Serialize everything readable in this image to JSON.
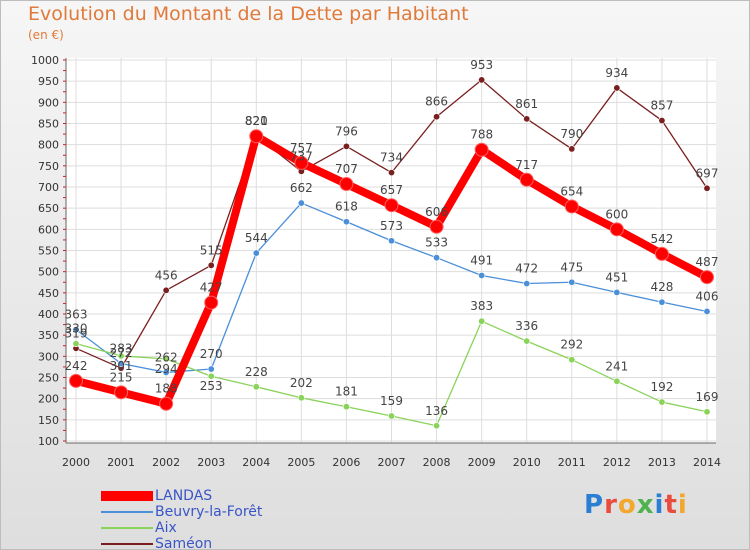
{
  "header": {
    "title": "Evolution du Montant de la Dette par Habitant",
    "subtitle": "(en €)"
  },
  "logo": {
    "text": "Proxiti"
  },
  "chart_data": {
    "type": "line",
    "x": [
      "2000",
      "2001",
      "2002",
      "2003",
      "2004",
      "2005",
      "2006",
      "2007",
      "2008",
      "2009",
      "2010",
      "2011",
      "2012",
      "2013",
      "2014"
    ],
    "ylim": [
      100,
      1000
    ],
    "yticks": [
      100,
      150,
      200,
      250,
      300,
      350,
      400,
      450,
      500,
      550,
      600,
      650,
      700,
      750,
      800,
      850,
      900,
      950,
      1000
    ],
    "grid": true,
    "legend_position": "bottom-left",
    "series": [
      {
        "name": "Saméon",
        "color": "#7a1f1f",
        "values": [
          319,
          272,
          456,
          515,
          821,
          737,
          796,
          734,
          866,
          953,
          861,
          790,
          934,
          857,
          697
        ],
        "labels": [
          "319",
          "272",
          "456",
          "515",
          "821",
          "737",
          "796",
          "734",
          "866",
          "953",
          "861",
          "790",
          "934",
          "857",
          "697"
        ]
      },
      {
        "name": "Beuvry-la-Forêt",
        "color": "#4a8fd8",
        "values": [
          363,
          283,
          262,
          270,
          544,
          662,
          618,
          573,
          533,
          491,
          472,
          475,
          451,
          428,
          406
        ],
        "labels": [
          "363",
          "283",
          "262",
          "270",
          "544",
          "662",
          "618",
          "573",
          "533",
          "491",
          "472",
          "475",
          "451",
          "428",
          "406"
        ]
      },
      {
        "name": "Aix",
        "color": "#8ad35a",
        "values": [
          330,
          301,
          294,
          253,
          228,
          202,
          181,
          159,
          136,
          383,
          336,
          292,
          241,
          192,
          169
        ],
        "labels": [
          "330",
          "301",
          "294",
          "253",
          "228",
          "202",
          "181",
          "159",
          "136",
          "383",
          "336",
          "292",
          "241",
          "192",
          "169"
        ]
      },
      {
        "name": "LANDAS",
        "color": "#ff0000",
        "values": [
          242,
          215,
          188,
          427,
          820,
          757,
          707,
          657,
          606,
          788,
          717,
          654,
          600,
          542,
          487
        ],
        "labels": [
          "242",
          "215",
          "188",
          "427",
          "820",
          "757",
          "707",
          "657",
          "606",
          "788",
          "717",
          "654",
          "600",
          "542",
          "487"
        ]
      }
    ],
    "legend": [
      {
        "name": "LANDAS",
        "color": "#ff0000",
        "thick": true
      },
      {
        "name": "Beuvry-la-Forêt",
        "color": "#4a8fd8",
        "thick": false
      },
      {
        "name": "Aix",
        "color": "#8ad35a",
        "thick": false
      },
      {
        "name": "Saméon",
        "color": "#7a1f1f",
        "thick": false
      }
    ]
  }
}
